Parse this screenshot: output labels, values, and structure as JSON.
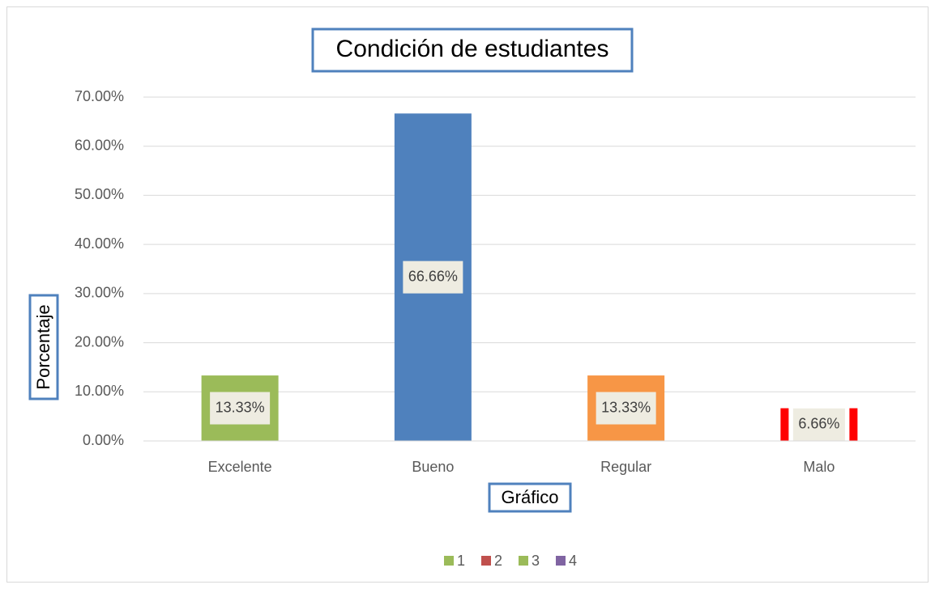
{
  "chart_data": {
    "type": "bar",
    "title": "Condición de estudiantes",
    "x_label": "Gráfico",
    "y_label": "Porcentaje",
    "categories": [
      "Excelente",
      "Bueno",
      "Regular",
      "Malo"
    ],
    "values": [
      13.33,
      66.66,
      13.33,
      6.66
    ],
    "value_labels": [
      "13.33%",
      "66.66%",
      "13.33%",
      "6.66%"
    ],
    "colors": [
      "#9bbb59",
      "#4f81bd",
      "#f79646",
      "#ffffff"
    ],
    "ylim": [
      0,
      70
    ],
    "yticks": [
      {
        "value": 0,
        "label": "0.00%"
      },
      {
        "value": 10,
        "label": "10.00%"
      },
      {
        "value": 20,
        "label": "20.00%"
      },
      {
        "value": 30,
        "label": "30.00%"
      },
      {
        "value": 40,
        "label": "40.00%"
      },
      {
        "value": 50,
        "label": "50.00%"
      },
      {
        "value": 60,
        "label": "60.00%"
      },
      {
        "value": 70,
        "label": "70.00%"
      }
    ],
    "grid": true,
    "legend": [
      {
        "label": "1",
        "color": "#9bbb59"
      },
      {
        "label": "2",
        "color": "#c0504d"
      },
      {
        "label": "3",
        "color": "#9bbb59"
      },
      {
        "label": "4",
        "color": "#8064a2"
      }
    ]
  }
}
